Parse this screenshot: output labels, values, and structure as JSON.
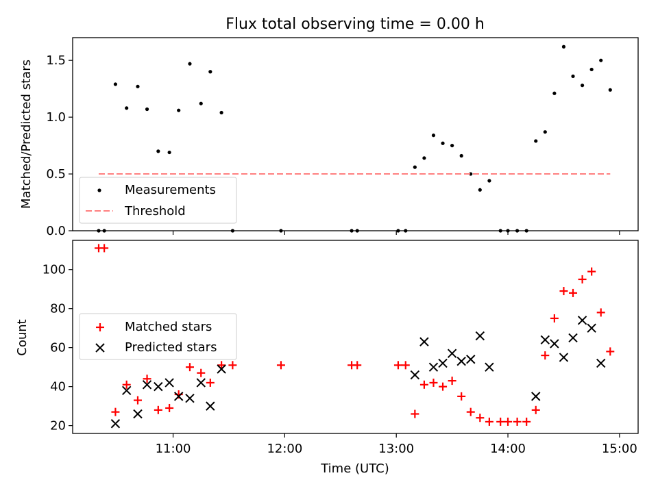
{
  "figure": {
    "title": "Flux total observing time = 0.00 h"
  },
  "chart_data": [
    {
      "type": "scatter",
      "ylabel": "Matched/Predicted stars",
      "xlabel": "",
      "xlim": [
        "10:06",
        "15:10"
      ],
      "ylim": [
        0,
        1.7
      ],
      "yticks": [
        0.0,
        0.5,
        1.0,
        1.5
      ],
      "ytick_labels": [
        "0.0",
        "0.5",
        "1.0",
        "1.5"
      ],
      "xticks": [
        "11:00",
        "12:00",
        "13:00",
        "14:00",
        "15:00"
      ],
      "grid": false,
      "legend_position": "lower-left",
      "series": [
        {
          "name": "Measurements",
          "marker": "dot",
          "color": "#000000",
          "x": [
            "10:20",
            "10:23",
            "10:29",
            "10:35",
            "10:41",
            "10:46",
            "10:52",
            "10:58",
            "11:03",
            "11:09",
            "11:15",
            "11:20",
            "11:26",
            "11:32",
            "11:58",
            "12:36",
            "12:39",
            "13:01",
            "13:05",
            "13:10",
            "13:15",
            "13:20",
            "13:25",
            "13:30",
            "13:35",
            "13:40",
            "13:45",
            "13:50",
            "13:56",
            "14:00",
            "14:05",
            "14:10",
            "14:15",
            "14:20",
            "14:25",
            "14:30",
            "14:35",
            "14:40",
            "14:45",
            "14:50",
            "14:55"
          ],
          "y": [
            0.0,
            0.0,
            1.29,
            1.08,
            1.27,
            1.07,
            0.7,
            0.69,
            1.06,
            1.47,
            1.12,
            1.4,
            1.04,
            0.0,
            0.0,
            0.0,
            0.0,
            0.0,
            0.0,
            0.56,
            0.64,
            0.84,
            0.77,
            0.75,
            0.66,
            0.5,
            0.36,
            0.44,
            0.0,
            0.0,
            0.0,
            0.0,
            0.79,
            0.87,
            1.21,
            1.62,
            1.36,
            1.28,
            1.42,
            1.5,
            1.24
          ]
        },
        {
          "name": "Threshold",
          "style": "dashed",
          "color": "#ff7f7f",
          "x": [
            "10:20",
            "14:55"
          ],
          "y": [
            0.5,
            0.5
          ]
        }
      ]
    },
    {
      "type": "scatter",
      "ylabel": "Count",
      "xlabel": "Time (UTC)",
      "xlim": [
        "10:06",
        "15:10"
      ],
      "ylim": [
        16,
        115
      ],
      "yticks": [
        20,
        40,
        60,
        80,
        100
      ],
      "ytick_labels": [
        "20",
        "40",
        "60",
        "80",
        "100"
      ],
      "xticks": [
        "11:00",
        "12:00",
        "13:00",
        "14:00",
        "15:00"
      ],
      "grid": false,
      "legend_position": "center-left",
      "series": [
        {
          "name": "Matched stars",
          "marker": "plus",
          "color": "#ff0000",
          "x": [
            "10:20",
            "10:23",
            "10:29",
            "10:35",
            "10:41",
            "10:46",
            "10:52",
            "10:58",
            "11:03",
            "11:09",
            "11:15",
            "11:20",
            "11:26",
            "11:32",
            "11:58",
            "12:36",
            "12:39",
            "13:01",
            "13:05",
            "13:10",
            "13:15",
            "13:20",
            "13:25",
            "13:30",
            "13:35",
            "13:40",
            "13:45",
            "13:50",
            "13:56",
            "14:00",
            "14:05",
            "14:10",
            "14:15",
            "14:20",
            "14:25",
            "14:30",
            "14:35",
            "14:40",
            "14:45",
            "14:50",
            "14:55"
          ],
          "y": [
            111,
            111,
            27,
            41,
            33,
            44,
            28,
            29,
            36,
            50,
            47,
            42,
            51,
            51,
            51,
            51,
            51,
            51,
            51,
            26,
            41,
            42,
            40,
            43,
            35,
            27,
            24,
            22,
            22,
            22,
            22,
            22,
            28,
            56,
            75,
            89,
            88,
            95,
            99,
            78,
            58
          ]
        },
        {
          "name": "Predicted stars",
          "marker": "x",
          "color": "#000000",
          "x": [
            "10:29",
            "10:35",
            "10:41",
            "10:46",
            "10:52",
            "10:58",
            "11:03",
            "11:09",
            "11:15",
            "11:20",
            "11:26",
            "11:30",
            "11:50",
            "12:00",
            "13:03",
            "13:10",
            "13:15",
            "13:20",
            "13:25",
            "13:30",
            "13:35",
            "13:40",
            "13:45",
            "13:50",
            "14:15",
            "14:20",
            "14:25",
            "14:30",
            "14:35",
            "14:40",
            "14:45",
            "14:50"
          ],
          "y": [
            21,
            38,
            26,
            41,
            40,
            42,
            35,
            34,
            42,
            30,
            49,
            null,
            null,
            null,
            null,
            46,
            63,
            50,
            52,
            57,
            53,
            54,
            66,
            50,
            35,
            64,
            62,
            55,
            65,
            74,
            70,
            52
          ]
        }
      ]
    }
  ]
}
